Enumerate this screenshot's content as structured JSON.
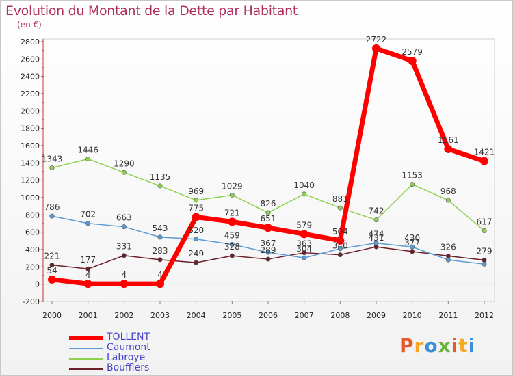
{
  "header": {
    "title": "Evolution du Montant de la Dette par Habitant",
    "subtitle": "(en €)"
  },
  "logo": {
    "text": "Proxiti",
    "colors": [
      "#e8592a",
      "#f5a623",
      "#3a8fd6",
      "#6ab23c"
    ]
  },
  "chart_data": {
    "type": "line",
    "title": "Evolution du Montant de la Dette par Habitant",
    "ylabel": "(en €)",
    "xlabel": "",
    "x": [
      "2000",
      "2001",
      "2002",
      "2003",
      "2004",
      "2005",
      "2006",
      "2007",
      "2008",
      "2009",
      "2010",
      "2011",
      "2012"
    ],
    "ylim": [
      -200,
      2800
    ],
    "yticks": [
      "-200",
      "0",
      "200",
      "400",
      "600",
      "800",
      "1000",
      "1200",
      "1400",
      "1600",
      "1800",
      "2000",
      "2200",
      "2400",
      "2600",
      "2800"
    ],
    "grid": false,
    "legend_position": "bottom-left",
    "series": [
      {
        "name": "TOLLENT",
        "color": "#ff0000",
        "width": 7,
        "values": [
          54,
          4,
          4,
          4,
          775,
          721,
          651,
          579,
          504,
          2722,
          2579,
          1561,
          1421
        ],
        "labels": [
          "54",
          "4",
          "4",
          "4",
          "775",
          "721",
          "651",
          "579",
          "504",
          "2722",
          "2579",
          "1561",
          "1421"
        ]
      },
      {
        "name": "Caumont",
        "color": "#5b9bd5",
        "width": 1.5,
        "values": [
          786,
          702,
          663,
          543,
          520,
          459,
          367,
          304,
          410,
          474,
          430,
          281,
          232
        ],
        "labels": [
          "786",
          "702",
          "663",
          "543",
          "520",
          "459",
          "367",
          "304",
          "",
          "474",
          "430",
          "",
          ""
        ]
      },
      {
        "name": "Labroye",
        "color": "#8fd14f",
        "width": 1.5,
        "values": [
          1343,
          1446,
          1290,
          1135,
          969,
          1029,
          826,
          1040,
          881,
          742,
          1153,
          968,
          617
        ],
        "labels": [
          "1343",
          "1446",
          "1290",
          "1135",
          "969",
          "1029",
          "826",
          "1040",
          "881",
          "742",
          "1153",
          "968",
          "617"
        ]
      },
      {
        "name": "Boufflers",
        "color": "#6b1f2a",
        "width": 1.5,
        "values": [
          221,
          177,
          331,
          283,
          249,
          328,
          289,
          363,
          340,
          431,
          377,
          326,
          279
        ],
        "labels": [
          "221",
          "177",
          "331",
          "283",
          "249",
          "328",
          "289",
          "363",
          "340",
          "431",
          "377",
          "326",
          "279"
        ]
      }
    ]
  }
}
